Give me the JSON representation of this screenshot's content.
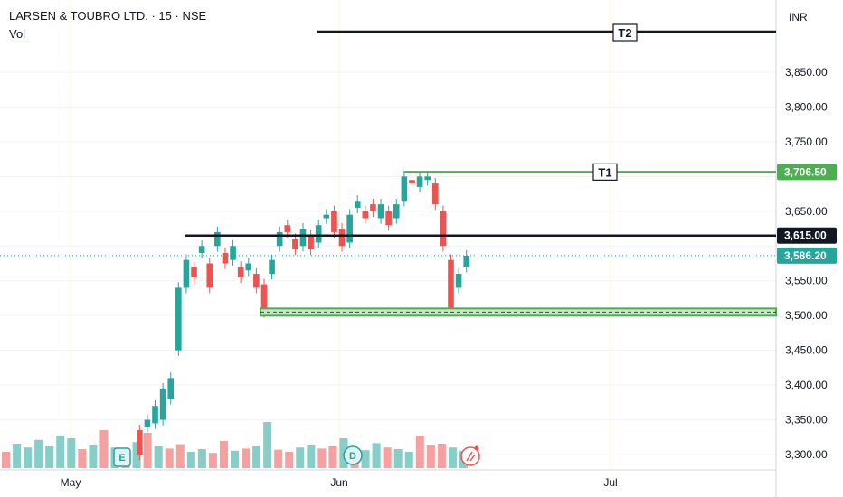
{
  "header": {
    "symbol_title": "LARSEN & TOUBRO LTD. · 15 · NSE",
    "volume_label": "Vol",
    "currency": "INR"
  },
  "colors": {
    "up": "#26a69a",
    "down": "#ef5350",
    "support": "#4caf50",
    "resistance": "#131722",
    "current": "#26a69a",
    "grid": "#f0f3fa",
    "month_line": "#fff3cd"
  },
  "chart_data": {
    "type": "candlestick",
    "y_ticks": [
      "3,850.00",
      "3,800.00",
      "3,750.00",
      "3,650.00",
      "3,550.00",
      "3,500.00",
      "3,450.00",
      "3,400.00",
      "3,350.00",
      "3,300.00"
    ],
    "y_tick_values": [
      3850,
      3800,
      3750,
      3650,
      3550,
      3500,
      3450,
      3400,
      3350,
      3300
    ],
    "x_ticks": [
      "May",
      "Jun",
      "Jul"
    ],
    "price_labels": [
      {
        "text": "3,706.50",
        "value": 3706.5,
        "kind": "support"
      },
      {
        "text": "3,615.00",
        "value": 3615,
        "kind": "resistance"
      },
      {
        "text": "3,586.20",
        "value": 3586.2,
        "kind": "current"
      }
    ],
    "levels": [
      {
        "name": "T2",
        "label": "T2",
        "value": 3890
      },
      {
        "name": "T1",
        "label": "T1",
        "value": 3706.5
      },
      {
        "name": "resistance",
        "label": "",
        "value": 3615
      },
      {
        "name": "support-zone",
        "label": "",
        "value": 3505
      }
    ],
    "markers": [
      {
        "label": "E",
        "kind": "earnings"
      },
      {
        "label": "D",
        "kind": "dividend"
      }
    ],
    "price_path": [
      [
        3335,
        3300
      ],
      [
        3340,
        3350
      ],
      [
        3345,
        3370
      ],
      [
        3350,
        3395
      ],
      [
        3380,
        3410
      ],
      [
        3450,
        3540
      ],
      [
        3540,
        3580
      ],
      [
        3570,
        3555
      ],
      [
        3590,
        3600
      ],
      [
        3575,
        3540
      ],
      [
        3600,
        3620
      ],
      [
        3590,
        3575
      ],
      [
        3580,
        3600
      ],
      [
        3570,
        3555
      ],
      [
        3565,
        3575
      ],
      [
        3560,
        3540
      ],
      [
        3545,
        3505
      ],
      [
        3560,
        3580
      ],
      [
        3600,
        3620
      ],
      [
        3630,
        3620
      ],
      [
        3610,
        3595
      ],
      [
        3600,
        3625
      ],
      [
        3615,
        3595
      ],
      [
        3605,
        3630
      ],
      [
        3640,
        3645
      ],
      [
        3650,
        3620
      ],
      [
        3625,
        3600
      ],
      [
        3605,
        3645
      ],
      [
        3655,
        3665
      ],
      [
        3650,
        3640
      ],
      [
        3660,
        3650
      ],
      [
        3640,
        3660
      ],
      [
        3650,
        3630
      ],
      [
        3640,
        3660
      ],
      [
        3665,
        3700
      ],
      [
        3695,
        3690
      ],
      [
        3685,
        3700
      ],
      [
        3695,
        3700
      ],
      [
        3690,
        3660
      ],
      [
        3650,
        3600
      ],
      [
        3580,
        3510
      ],
      [
        3540,
        3560
      ],
      [
        3570,
        3586
      ]
    ],
    "volume_bars": [
      30,
      45,
      38,
      52,
      40,
      60,
      55,
      35,
      42,
      70,
      38,
      33,
      48,
      65,
      40,
      36,
      44,
      30,
      35,
      28,
      50,
      32,
      36,
      40,
      85,
      34,
      30,
      38,
      42,
      36,
      40,
      55,
      30,
      33,
      46,
      38,
      35,
      30,
      60,
      42,
      45,
      38,
      32
    ]
  }
}
